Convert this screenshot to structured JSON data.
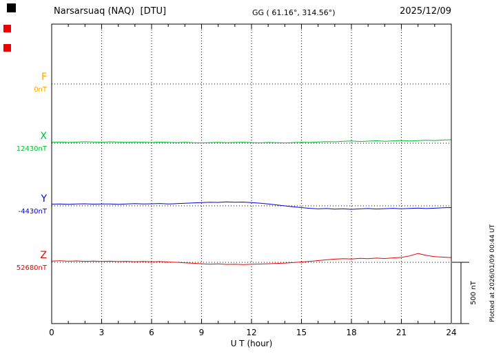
{
  "header": {
    "station_title": "Narsarsuaq (NAQ)  [DTU]",
    "geographic_coords": "GG ( 61.16°, 314.56°)",
    "date": "2025/12/09"
  },
  "side_note": "Plotted at 2026/01/09 00:44 UT",
  "markers": {
    "top_square_color": "#000000",
    "left_square_colors": [
      "#ee0000",
      "#ee0000"
    ]
  },
  "chart_data": {
    "type": "line",
    "title": "Narsarsuaq (NAQ)  [DTU] magnetogram 2025/12/09",
    "xlabel": "U T (hour)",
    "x_range": [
      0,
      24
    ],
    "x_ticks": [
      0,
      3,
      6,
      9,
      12,
      15,
      18,
      21,
      24
    ],
    "grid": "dotted vertical lines every 3 hours; dotted horizontal baseline per component",
    "scale_bar": {
      "label": "500 nT",
      "nT": 500
    },
    "values_unit": "nT offset from component baseline, sampled every x_step hours",
    "series": [
      {
        "name": "F",
        "color": "#ffa500",
        "baseline_label": "0nT",
        "baseline_nT": 0,
        "x_step": 0.5,
        "values": []
      },
      {
        "name": "X",
        "color": "#00bf30",
        "baseline_label": "12430nT",
        "baseline_nT": 12430,
        "x_step": 0.5,
        "values": [
          8,
          10,
          6,
          9,
          12,
          10,
          8,
          11,
          9,
          7,
          10,
          8,
          6,
          9,
          7,
          5,
          8,
          4,
          2,
          5,
          7,
          4,
          6,
          8,
          5,
          3,
          6,
          4,
          2,
          5,
          8,
          6,
          10,
          13,
          11,
          15,
          18,
          14,
          17,
          20,
          16,
          19,
          22,
          18,
          21,
          25,
          22,
          26,
          28
        ]
      },
      {
        "name": "Y",
        "color": "#0000dd",
        "baseline_label": "-4430nT",
        "baseline_nT": -4430,
        "x_step": 0.5,
        "values": [
          14,
          16,
          13,
          15,
          17,
          14,
          16,
          15,
          13,
          16,
          18,
          15,
          17,
          19,
          16,
          18,
          21,
          24,
          27,
          30,
          28,
          32,
          29,
          31,
          27,
          22,
          16,
          8,
          0,
          -8,
          -14,
          -20,
          -25,
          -22,
          -27,
          -24,
          -28,
          -25,
          -22,
          -26,
          -23,
          -20,
          -24,
          -21,
          -18,
          -22,
          -19,
          -16,
          -14
        ]
      },
      {
        "name": "Z",
        "color": "#ee0000",
        "baseline_label": "52680nT",
        "baseline_nT": 52680,
        "x_step": 0.5,
        "values": [
          10,
          13,
          9,
          11,
          8,
          10,
          7,
          9,
          6,
          8,
          5,
          7,
          4,
          6,
          2,
          0,
          -4,
          -8,
          -12,
          -15,
          -13,
          -17,
          -15,
          -18,
          -16,
          -14,
          -12,
          -9,
          -6,
          -2,
          3,
          8,
          14,
          20,
          26,
          30,
          27,
          32,
          29,
          34,
          31,
          36,
          40,
          52,
          72,
          56,
          46,
          42,
          39
        ]
      }
    ]
  }
}
